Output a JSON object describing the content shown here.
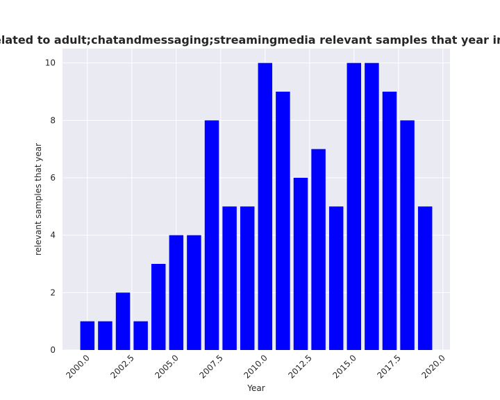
{
  "colors": {
    "bar": "#0000ff",
    "plot_background": "#eaeaf2",
    "grid": "#ffffff",
    "text": "#262626"
  },
  "chart_data": {
    "type": "bar",
    "title": "es are related to adult;chatandmessaging;streamingmedia relevant samples that year in privacy",
    "xlabel": "Year",
    "ylabel": "relevant samples that year",
    "x": [
      2000,
      2001,
      2002,
      2003,
      2004,
      2005,
      2006,
      2007,
      2008,
      2009,
      2010,
      2011,
      2012,
      2013,
      2014,
      2015,
      2016,
      2017,
      2018,
      2019
    ],
    "values": [
      1,
      1,
      2,
      1,
      3,
      4,
      4,
      8,
      5,
      5,
      10,
      9,
      6,
      7,
      5,
      10,
      10,
      9,
      8,
      5
    ],
    "xlim": [
      1998.6,
      2020.4
    ],
    "ylim": [
      0,
      10.5
    ],
    "xticks": [
      "2000.0",
      "2002.5",
      "2005.0",
      "2007.5",
      "2010.0",
      "2012.5",
      "2015.0",
      "2017.5",
      "2020.0"
    ],
    "yticks": [
      "0",
      "2",
      "4",
      "6",
      "8",
      "10"
    ],
    "xtick_rotation": 45,
    "grid": true,
    "legend": "none"
  }
}
